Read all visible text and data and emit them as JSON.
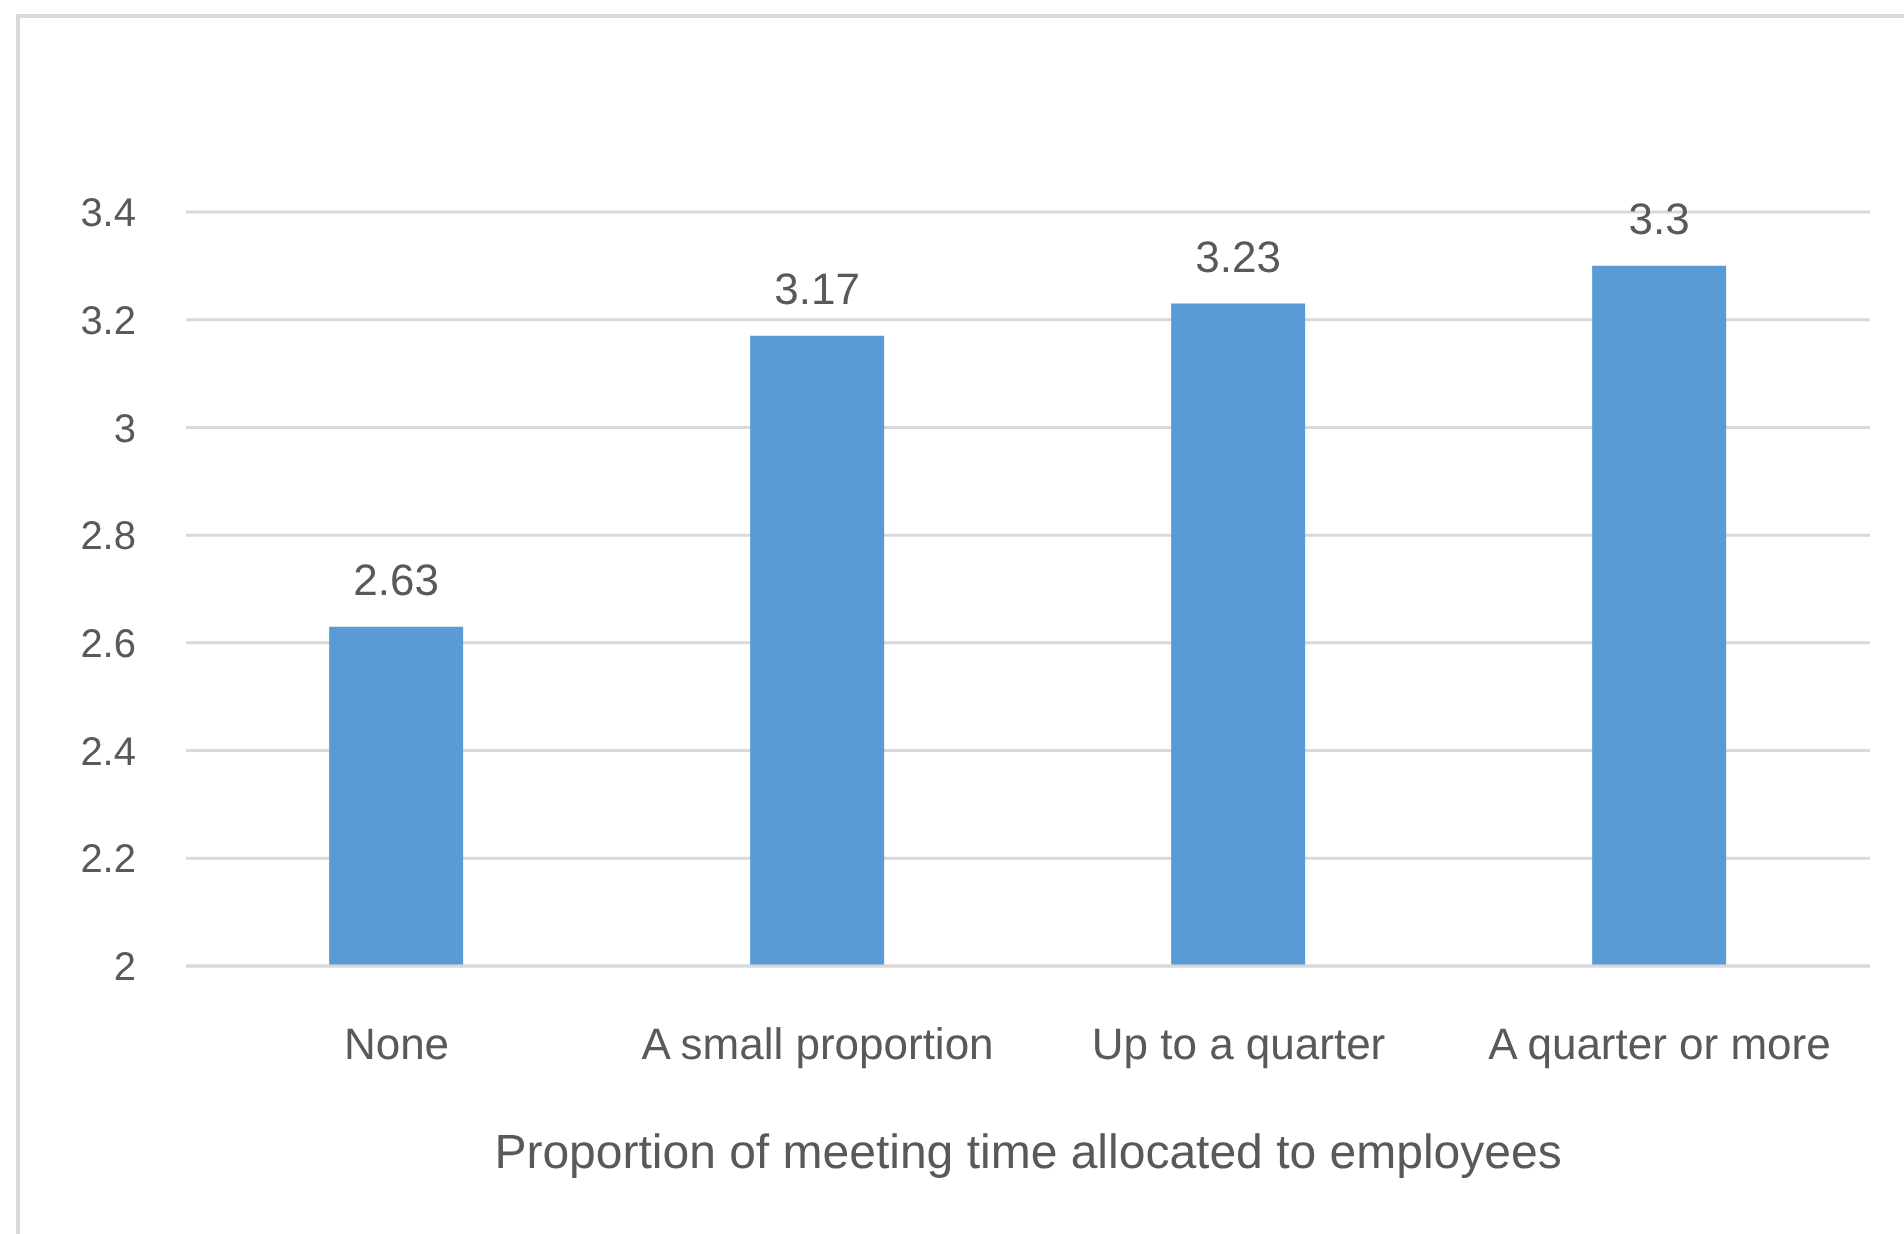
{
  "chart_data": {
    "type": "bar",
    "xlabel": "Proportion of meeting time allocated to employees",
    "categories": [
      "None",
      "A small proportion",
      "Up to a quarter",
      "A quarter or more"
    ],
    "values": [
      2.63,
      3.17,
      3.23,
      3.3
    ],
    "color": "#5b9bd5",
    "ylim": [
      2,
      3.4
    ],
    "yticks": [
      2,
      2.2,
      2.4,
      2.6,
      2.8,
      3,
      3.2,
      3.4
    ],
    "grid": "y",
    "data_labels": true
  }
}
